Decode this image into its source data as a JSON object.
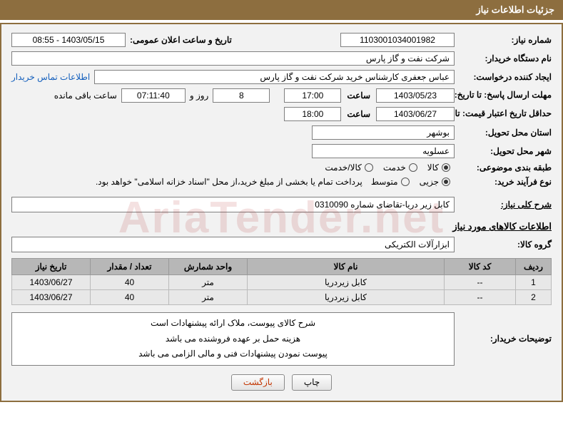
{
  "header": {
    "title": "جزئیات اطلاعات نیاز"
  },
  "fields": {
    "need_no_label": "شماره نیاز:",
    "need_no": "1103001034001982",
    "announce_label": "تاریخ و ساعت اعلان عمومی:",
    "announce": "1403/05/15 - 08:55",
    "buyer_org_label": "نام دستگاه خریدار:",
    "buyer_org": "شرکت نفت و گاز پارس",
    "requester_label": "ایجاد کننده درخواست:",
    "requester": "عباس  جعفری کارشناس خرید  شرکت نفت و گاز پارس",
    "contact_link": "اطلاعات تماس خریدار",
    "deadline_label": "مهلت ارسال پاسخ: تا تاریخ:",
    "deadline_date": "1403/05/23",
    "time_label": "ساعت",
    "deadline_time": "17:00",
    "days_remaining": "8",
    "days_word": "روز و",
    "time_remaining": "07:11:40",
    "remaining_suffix": "ساعت باقی مانده",
    "validity_label": "حداقل تاریخ اعتبار قیمت: تا تاریخ:",
    "validity_date": "1403/06/27",
    "validity_time": "18:00",
    "province_label": "استان محل تحویل:",
    "province": "بوشهر",
    "city_label": "شهر محل تحویل:",
    "city": "عسلویه",
    "category_label": "طبقه بندی موضوعی:",
    "cat_goods": "کالا",
    "cat_service": "خدمت",
    "cat_goods_service": "کالا/خدمت",
    "purchase_type_label": "نوع فرآیند خرید:",
    "ptype_small": "جزیی",
    "ptype_medium": "متوسط",
    "payment_note": "پرداخت تمام یا بخشی از مبلغ خرید،از محل \"اسناد خزانه اسلامی\" خواهد بود.",
    "general_desc_label": "شرح کلی نیاز:",
    "general_desc": "کابل زیر دریا-تقاضای شماره 0310090",
    "goods_info_title": "اطلاعات کالاهای مورد نیاز",
    "goods_group_label": "گروه کالا:",
    "goods_group": "ابزارآلات الکتریکی",
    "remarks_label": "توضیحات خریدار:",
    "remarks_l1": "شرح کالای پیوست، ملاک ارائه پیشنهادات است",
    "remarks_l2": "هزینه حمل بر عهده فروشنده می باشد",
    "remarks_l3": "پیوست نمودن پیشنهادات فنی و مالی الزامی می باشد"
  },
  "category_selected": "goods",
  "ptype_selected": "small",
  "table": {
    "headers": {
      "row": "ردیف",
      "code": "کد کالا",
      "name": "نام کالا",
      "unit": "واحد شمارش",
      "qty": "تعداد / مقدار",
      "date": "تاریخ نیاز"
    },
    "rows": [
      {
        "row": "1",
        "code": "--",
        "name": "کابل زیردریا",
        "unit": "متر",
        "qty": "40",
        "date": "1403/06/27"
      },
      {
        "row": "2",
        "code": "--",
        "name": "کابل زیردریا",
        "unit": "متر",
        "qty": "40",
        "date": "1403/06/27"
      }
    ]
  },
  "buttons": {
    "print": "چاپ",
    "back": "بازگشت"
  },
  "watermark": "AriaTender.net",
  "colors": {
    "header_bg": "#8d6e3f",
    "border": "#8d6e3f",
    "panel_bg": "#f2f2f2",
    "th_bg": "#b7b7b7",
    "td_bg": "#e8e8e8",
    "link": "#1560bd"
  }
}
